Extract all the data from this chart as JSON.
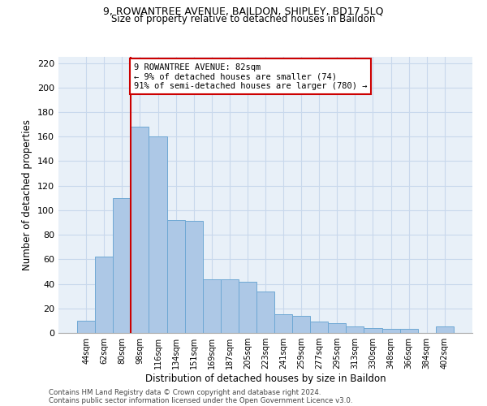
{
  "title1": "9, ROWANTREE AVENUE, BAILDON, SHIPLEY, BD17 5LQ",
  "title2": "Size of property relative to detached houses in Baildon",
  "xlabel": "Distribution of detached houses by size in Baildon",
  "ylabel": "Number of detached properties",
  "footer1": "Contains HM Land Registry data © Crown copyright and database right 2024.",
  "footer2": "Contains public sector information licensed under the Open Government Licence v3.0.",
  "categories": [
    "44sqm",
    "62sqm",
    "80sqm",
    "98sqm",
    "116sqm",
    "134sqm",
    "151sqm",
    "169sqm",
    "187sqm",
    "205sqm",
    "223sqm",
    "241sqm",
    "259sqm",
    "277sqm",
    "295sqm",
    "313sqm",
    "330sqm",
    "348sqm",
    "366sqm",
    "384sqm",
    "402sqm"
  ],
  "values": [
    10,
    62,
    110,
    168,
    160,
    92,
    91,
    44,
    44,
    42,
    34,
    15,
    14,
    9,
    8,
    5,
    4,
    3,
    3,
    0,
    5
  ],
  "bar_color": "#adc8e6",
  "bar_edge_color": "#6fa8d4",
  "grid_color": "#c8d8ec",
  "background_color": "#e8f0f8",
  "annotation_line1": "9 ROWANTREE AVENUE: 82sqm",
  "annotation_line2": "← 9% of detached houses are smaller (74)",
  "annotation_line3": "91% of semi-detached houses are larger (780) →",
  "vline_x_index": 2.5,
  "annotation_box_facecolor": "#ffffff",
  "annotation_box_edgecolor": "#cc0000",
  "vline_color": "#cc0000",
  "ylim": [
    0,
    225
  ],
  "yticks": [
    0,
    20,
    40,
    60,
    80,
    100,
    120,
    140,
    160,
    180,
    200,
    220
  ]
}
